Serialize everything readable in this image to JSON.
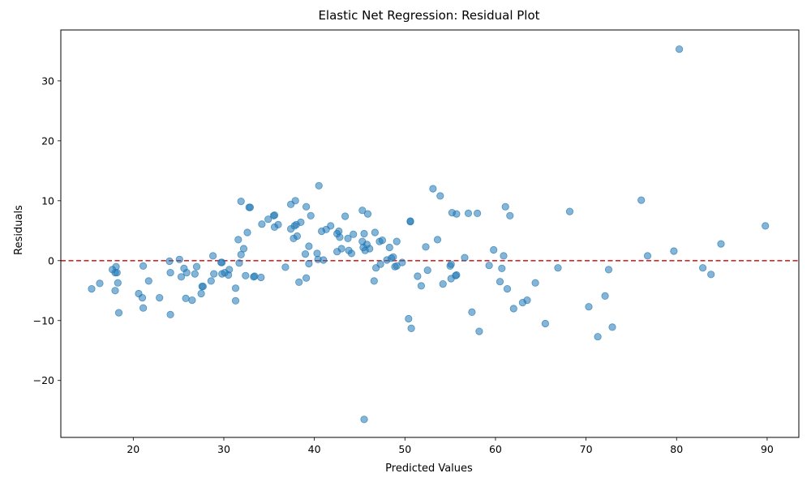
{
  "chart_data": {
    "type": "scatter",
    "title": "Elastic Net Regression: Residual Plot",
    "xlabel": "Predicted Values",
    "ylabel": "Residuals",
    "xlim": [
      12,
      93.5
    ],
    "ylim": [
      -29.5,
      38.5
    ],
    "xticks": [
      20,
      30,
      40,
      50,
      60,
      70,
      80,
      90
    ],
    "yticks": [
      -20,
      -10,
      0,
      10,
      20,
      30
    ],
    "grid": false,
    "legend": false,
    "point_color": "#1f77b4",
    "point_opacity": 0.55,
    "reference_line": {
      "y": 0,
      "color": "#d62728",
      "style": "dashed"
    },
    "series": [
      {
        "points": [
          [
            15.4,
            -4.7
          ],
          [
            16.3,
            -3.8
          ],
          [
            17.7,
            -1.5
          ],
          [
            18.0,
            -2.0
          ],
          [
            18.1,
            -1.0
          ],
          [
            18.0,
            -5.0
          ],
          [
            18.2,
            -2.0
          ],
          [
            18.3,
            -3.7
          ],
          [
            18.4,
            -8.7
          ],
          [
            20.6,
            -5.5
          ],
          [
            21.0,
            -6.2
          ],
          [
            21.1,
            -0.9
          ],
          [
            21.1,
            -7.9
          ],
          [
            21.7,
            -3.4
          ],
          [
            22.9,
            -6.2
          ],
          [
            24.0,
            -0.1
          ],
          [
            24.1,
            -2.0
          ],
          [
            24.1,
            -9.0
          ],
          [
            25.1,
            0.2
          ],
          [
            25.3,
            -2.7
          ],
          [
            25.6,
            -1.3
          ],
          [
            25.8,
            -6.3
          ],
          [
            25.9,
            -2.0
          ],
          [
            26.5,
            -6.6
          ],
          [
            26.8,
            -2.2
          ],
          [
            27.0,
            -1.0
          ],
          [
            27.5,
            -5.5
          ],
          [
            27.6,
            -4.3
          ],
          [
            27.7,
            -4.3
          ],
          [
            28.6,
            -3.4
          ],
          [
            28.8,
            0.8
          ],
          [
            28.9,
            -2.2
          ],
          [
            29.7,
            -0.3
          ],
          [
            29.8,
            -0.3
          ],
          [
            29.8,
            -2.2
          ],
          [
            30.1,
            -2.0
          ],
          [
            30.5,
            -2.4
          ],
          [
            30.6,
            -1.5
          ],
          [
            31.3,
            -6.7
          ],
          [
            31.3,
            -4.6
          ],
          [
            31.6,
            3.5
          ],
          [
            31.7,
            -0.4
          ],
          [
            31.9,
            9.9
          ],
          [
            31.9,
            1.0
          ],
          [
            32.2,
            2.0
          ],
          [
            32.4,
            -2.5
          ],
          [
            32.6,
            4.7
          ],
          [
            32.8,
            8.9
          ],
          [
            32.9,
            8.9
          ],
          [
            33.3,
            -2.7
          ],
          [
            33.4,
            -2.6
          ],
          [
            34.1,
            -2.8
          ],
          [
            34.2,
            6.1
          ],
          [
            34.9,
            6.9
          ],
          [
            35.5,
            7.5
          ],
          [
            35.6,
            7.6
          ],
          [
            35.6,
            5.6
          ],
          [
            36.0,
            6.0
          ],
          [
            36.8,
            -1.1
          ],
          [
            37.4,
            5.3
          ],
          [
            37.4,
            9.4
          ],
          [
            37.7,
            3.7
          ],
          [
            37.8,
            5.8
          ],
          [
            37.9,
            10.0
          ],
          [
            38.0,
            6.0
          ],
          [
            38.1,
            4.1
          ],
          [
            38.3,
            -3.6
          ],
          [
            38.5,
            6.4
          ],
          [
            39.0,
            1.1
          ],
          [
            39.1,
            9.0
          ],
          [
            39.1,
            -2.9
          ],
          [
            39.4,
            2.4
          ],
          [
            39.4,
            -0.5
          ],
          [
            39.6,
            7.5
          ],
          [
            40.3,
            1.2
          ],
          [
            40.4,
            0.2
          ],
          [
            40.5,
            12.5
          ],
          [
            40.8,
            4.9
          ],
          [
            41.0,
            0.1
          ],
          [
            41.3,
            5.2
          ],
          [
            41.8,
            5.8
          ],
          [
            42.5,
            4.5
          ],
          [
            42.5,
            1.5
          ],
          [
            42.7,
            4.9
          ],
          [
            42.8,
            3.9
          ],
          [
            43.0,
            2.0
          ],
          [
            43.4,
            7.4
          ],
          [
            43.7,
            3.7
          ],
          [
            43.8,
            1.7
          ],
          [
            44.1,
            1.2
          ],
          [
            44.3,
            4.4
          ],
          [
            45.3,
            8.4
          ],
          [
            45.3,
            3.2
          ],
          [
            45.4,
            2.2
          ],
          [
            45.5,
            4.5
          ],
          [
            45.5,
            -26.5
          ],
          [
            45.6,
            1.7
          ],
          [
            45.8,
            2.7
          ],
          [
            45.9,
            7.8
          ],
          [
            46.1,
            2.0
          ],
          [
            46.6,
            -3.4
          ],
          [
            46.7,
            4.7
          ],
          [
            46.8,
            -1.2
          ],
          [
            47.2,
            3.2
          ],
          [
            47.3,
            -0.6
          ],
          [
            47.5,
            3.4
          ],
          [
            48.0,
            0.1
          ],
          [
            48.3,
            2.2
          ],
          [
            48.5,
            0.4
          ],
          [
            48.7,
            0.6
          ],
          [
            48.9,
            -1.0
          ],
          [
            49.1,
            3.2
          ],
          [
            49.1,
            -0.9
          ],
          [
            49.7,
            -0.3
          ],
          [
            50.4,
            -9.7
          ],
          [
            50.6,
            6.6
          ],
          [
            50.6,
            6.5
          ],
          [
            50.7,
            -11.3
          ],
          [
            51.4,
            -2.6
          ],
          [
            51.8,
            -4.2
          ],
          [
            52.3,
            2.3
          ],
          [
            52.5,
            -1.6
          ],
          [
            53.1,
            12.0
          ],
          [
            53.6,
            3.5
          ],
          [
            53.9,
            10.8
          ],
          [
            54.2,
            -3.9
          ],
          [
            55.0,
            -0.9
          ],
          [
            55.1,
            -0.6
          ],
          [
            55.1,
            -3.0
          ],
          [
            55.2,
            8.0
          ],
          [
            55.6,
            -2.5
          ],
          [
            55.7,
            7.8
          ],
          [
            55.7,
            -2.4
          ],
          [
            56.6,
            0.5
          ],
          [
            57.0,
            7.9
          ],
          [
            57.4,
            -8.6
          ],
          [
            58.0,
            7.9
          ],
          [
            58.2,
            -11.8
          ],
          [
            59.3,
            -0.8
          ],
          [
            59.8,
            1.8
          ],
          [
            60.5,
            -3.5
          ],
          [
            60.7,
            -1.3
          ],
          [
            60.9,
            0.8
          ],
          [
            61.1,
            9.0
          ],
          [
            61.3,
            -4.7
          ],
          [
            61.6,
            7.5
          ],
          [
            62.0,
            -8.0
          ],
          [
            63.0,
            -7.0
          ],
          [
            63.5,
            -6.6
          ],
          [
            64.4,
            -3.7
          ],
          [
            65.5,
            -10.5
          ],
          [
            66.9,
            -1.2
          ],
          [
            68.2,
            8.2
          ],
          [
            70.3,
            -7.7
          ],
          [
            71.3,
            -12.7
          ],
          [
            72.1,
            -5.9
          ],
          [
            72.5,
            -1.5
          ],
          [
            72.9,
            -11.1
          ],
          [
            76.1,
            10.1
          ],
          [
            76.8,
            0.8
          ],
          [
            79.7,
            1.6
          ],
          [
            80.3,
            35.3
          ],
          [
            82.9,
            -1.2
          ],
          [
            83.8,
            -2.3
          ],
          [
            84.9,
            2.8
          ],
          [
            89.8,
            5.8
          ]
        ]
      }
    ]
  }
}
